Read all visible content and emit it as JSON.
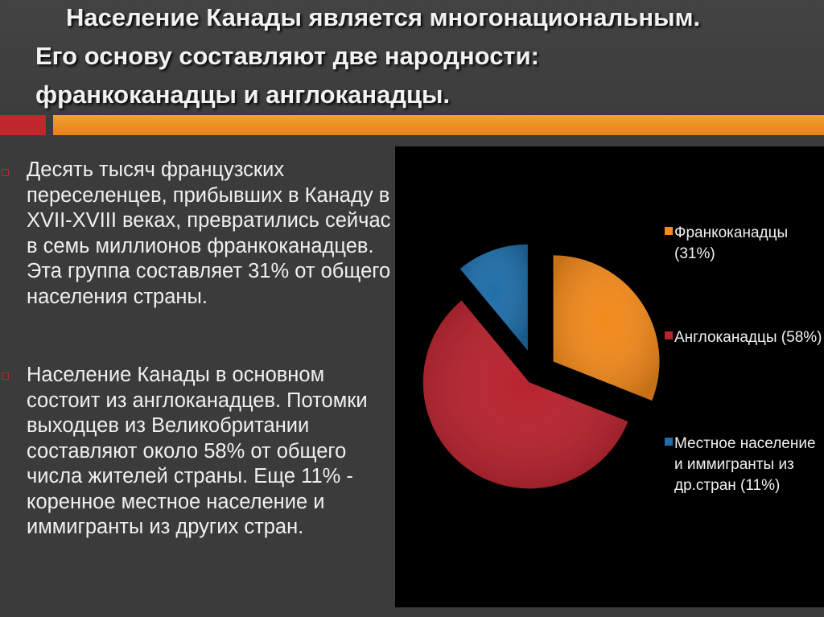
{
  "title": {
    "line1": "Население Канады является многонациональным.",
    "line2": "Его основу составляют две народности:",
    "line3": "франкоканадцы и англоканадцы."
  },
  "paragraphs": [
    "Десять тысяч французских переселенцев, прибывших в Канаду в XVII-XVIII веках, превратились сейчас в семь миллионов франкоканадцев. Эта группа составляет 31% от общего населения страны.",
    "Население Канады в основном состоит из англоканадцев. Потомки выходцев из Великобритании составляют около 58% от общего числа жителей страны. Еще 11% - коренное местное население и иммигранты из других стран."
  ],
  "colors": {
    "accent_orange": "#e8801a",
    "accent_red": "#c0272d",
    "bullet": "#c0272d"
  },
  "chart_data": {
    "type": "pie",
    "exploded": true,
    "legend_position": "right",
    "slices": [
      {
        "label": "Франкоканадцы (31%)",
        "value": 31,
        "color": "#f28a1c"
      },
      {
        "label": "Англоканадцы (58%)",
        "value": 58,
        "color": "#b8232e"
      },
      {
        "label": "Местное население и иммигранты из др.стран (11%)",
        "value": 11,
        "color": "#1f6ea8"
      }
    ]
  }
}
